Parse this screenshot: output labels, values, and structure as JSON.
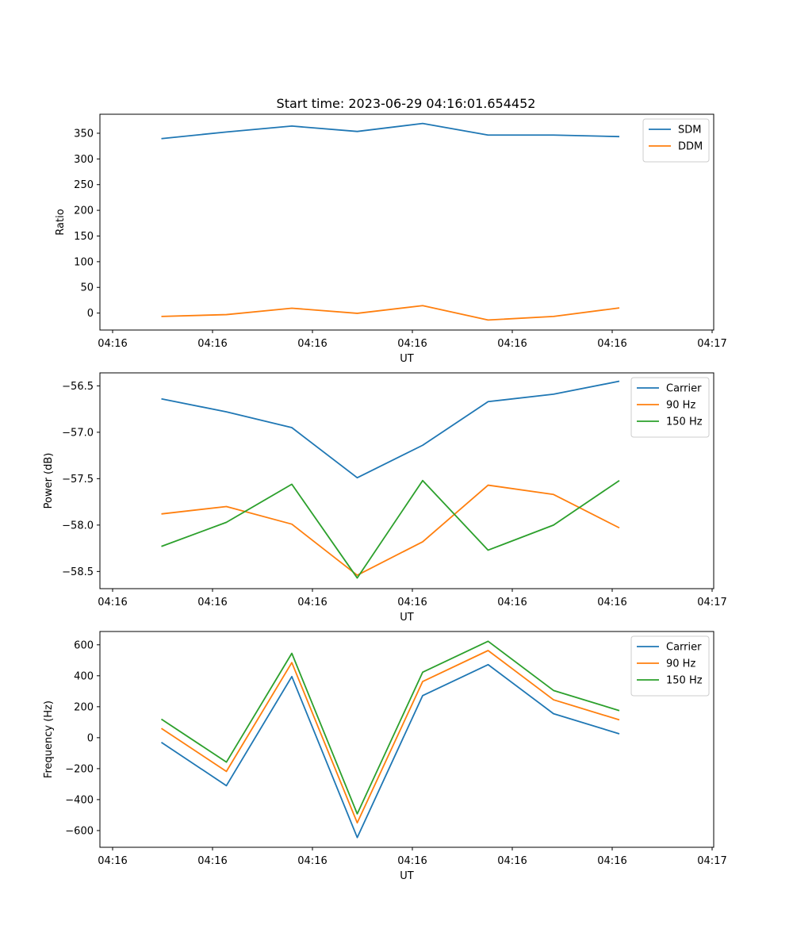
{
  "figure_title": "Start time: 2023-06-29 04:16:01.654452",
  "chart_data": [
    {
      "type": "line",
      "xlabel": "UT",
      "ylabel": "Ratio",
      "xtick_labels": [
        "04:16",
        "04:16",
        "04:16",
        "04:16",
        "04:16",
        "04:16",
        "04:17"
      ],
      "ylim": [
        -33,
        387
      ],
      "yticks": [
        0,
        50,
        100,
        150,
        200,
        250,
        300,
        350
      ],
      "legend_position": "upper-right",
      "grid": false,
      "series": [
        {
          "name": "SDM",
          "color": "#1f77b4",
          "values": [
            339.5,
            352.5,
            364,
            353.5,
            369,
            346.5,
            346.5,
            343.5
          ]
        },
        {
          "name": "DDM",
          "color": "#ff7f0e",
          "values": [
            -6.5,
            -3,
            9.5,
            -0.5,
            14.5,
            -13.5,
            -6.5,
            10
          ]
        }
      ]
    },
    {
      "type": "line",
      "xlabel": "UT",
      "ylabel": "Power (dB)",
      "xtick_labels": [
        "04:16",
        "04:16",
        "04:16",
        "04:16",
        "04:16",
        "04:16",
        "04:17"
      ],
      "ylim": [
        -58.685,
        -56.36
      ],
      "yticks": [
        -58.5,
        -58.0,
        -57.5,
        -57.0,
        -56.5
      ],
      "ytick_labels": [
        "−58.5",
        "−58.0",
        "−57.5",
        "−57.0",
        "−56.5"
      ],
      "legend_position": "upper-right",
      "grid": false,
      "series": [
        {
          "name": "Carrier",
          "color": "#1f77b4",
          "values": [
            -56.64,
            -56.78,
            -56.95,
            -57.49,
            -57.14,
            -56.67,
            -56.59,
            -56.45
          ]
        },
        {
          "name": "90 Hz",
          "color": "#ff7f0e",
          "values": [
            -57.88,
            -57.8,
            -57.99,
            -58.54,
            -58.18,
            -57.57,
            -57.67,
            -58.03
          ]
        },
        {
          "name": "150 Hz",
          "color": "#2ca02c",
          "values": [
            -58.23,
            -57.97,
            -57.56,
            -58.57,
            -57.52,
            -58.27,
            -58.0,
            -57.52
          ]
        }
      ]
    },
    {
      "type": "line",
      "xlabel": "UT",
      "ylabel": "Frequency (Hz)",
      "xtick_labels": [
        "04:16",
        "04:16",
        "04:16",
        "04:16",
        "04:16",
        "04:16",
        "04:17"
      ],
      "ylim": [
        -708,
        686
      ],
      "yticks": [
        -600,
        -400,
        -200,
        0,
        200,
        400,
        600
      ],
      "ytick_labels": [
        "−600",
        "−400",
        "−200",
        "0",
        "200",
        "400",
        "600"
      ],
      "legend_position": "upper-right",
      "grid": false,
      "series": [
        {
          "name": "Carrier",
          "color": "#1f77b4",
          "values": [
            -30,
            -310,
            395,
            -645,
            272,
            472,
            155,
            25
          ]
        },
        {
          "name": "90 Hz",
          "color": "#ff7f0e",
          "values": [
            60,
            -218,
            485,
            -550,
            363,
            563,
            245,
            115
          ]
        },
        {
          "name": "150 Hz",
          "color": "#2ca02c",
          "values": [
            120,
            -158,
            545,
            -492,
            423,
            623,
            305,
            175
          ]
        }
      ]
    }
  ]
}
